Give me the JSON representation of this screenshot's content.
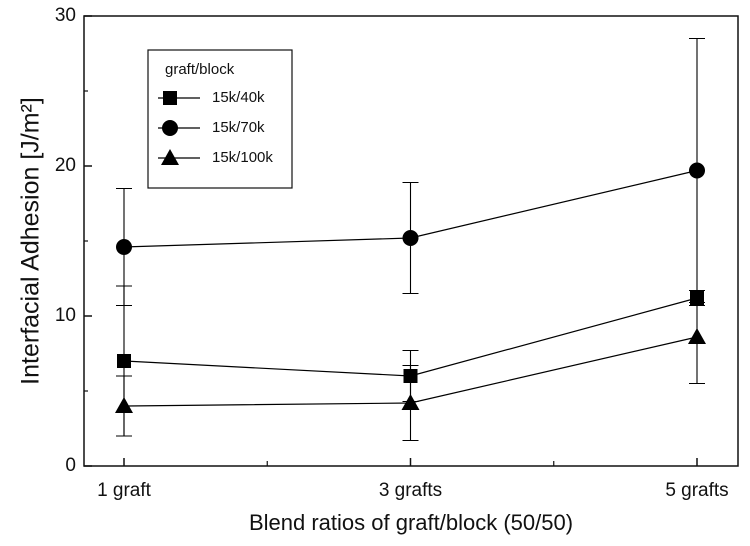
{
  "chart_data": {
    "type": "line",
    "x_label": "Blend ratios of graft/block (50/50)",
    "y_label": "Interfacial Adhesion [J/m²]",
    "categories": [
      "1 graft",
      "3 grafts",
      "5 grafts"
    ],
    "legend_title": "graft/block",
    "legend": "upper left",
    "series": [
      {
        "name": "15k/40k",
        "color": "#000000",
        "marker": "square",
        "values": [
          7.0,
          6.0,
          11.2
        ],
        "errors": [
          5.0,
          1.7,
          0.5
        ]
      },
      {
        "name": "15k/70k",
        "color": "#000000",
        "marker": "circle",
        "values": [
          14.6,
          15.2,
          19.7
        ],
        "errors": [
          3.9,
          3.7,
          8.8
        ]
      },
      {
        "name": "15k/100k",
        "color": "#000000",
        "marker": "triangle",
        "values": [
          4.0,
          4.2,
          8.6
        ],
        "errors": [
          2.0,
          2.5,
          3.1
        ]
      }
    ],
    "ylim": [
      0,
      30
    ],
    "yticks": [
      0,
      10,
      20,
      30
    ],
    "grid": false
  }
}
